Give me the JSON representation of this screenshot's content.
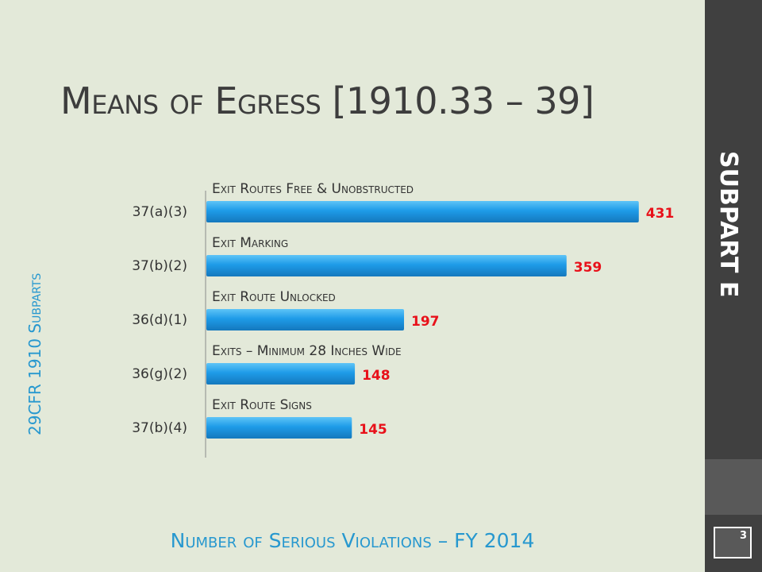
{
  "slide": {
    "title": "Means of Egress [1910.33 – 39]",
    "sidebar_label": "SUBPART E",
    "page_number": "3",
    "vertical_caption": "29CFR 1910 Subparts",
    "bottom_caption": "Number of Serious Violations – FY 2014"
  },
  "colors": {
    "background": "#e3e9d9",
    "sidebar_dark": "#404040",
    "sidebar_mid": "#595959",
    "bar": "#1e9be8",
    "value_label": "#e8111a",
    "accent_text": "#2798cf",
    "title_text": "#3d3d3d"
  },
  "chart_data": {
    "type": "bar",
    "orientation": "horizontal",
    "categories": [
      "37(a)(3)",
      "37(b)(2)",
      "36(d)(1)",
      "36(g)(2)",
      "37(b)(4)"
    ],
    "values": [
      431,
      359,
      197,
      148,
      145
    ],
    "bar_labels": [
      "Exit Routes Free & Unobstructed",
      "Exit Marking",
      "Exit Route Unlocked",
      "Exits – Minimum 28 Inches Wide",
      "Exit Route Signs"
    ],
    "xlim": [
      0,
      500
    ],
    "grid": false,
    "legend": "none"
  }
}
